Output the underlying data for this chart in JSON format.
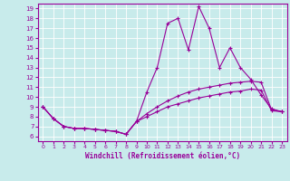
{
  "xlabel": "Windchill (Refroidissement éolien,°C)",
  "bg_color": "#c8ebeb",
  "line_color": "#990099",
  "grid_color": "#ffffff",
  "xlim": [
    -0.5,
    23.5
  ],
  "ylim": [
    5.5,
    19.5
  ],
  "yticks": [
    6,
    7,
    8,
    9,
    10,
    11,
    12,
    13,
    14,
    15,
    16,
    17,
    18,
    19
  ],
  "xticks": [
    0,
    1,
    2,
    3,
    4,
    5,
    6,
    7,
    8,
    9,
    10,
    11,
    12,
    13,
    14,
    15,
    16,
    17,
    18,
    19,
    20,
    21,
    22,
    23
  ],
  "line1_x": [
    0,
    1,
    2,
    3,
    4,
    5,
    6,
    7,
    8,
    9,
    10,
    11,
    12,
    13,
    14,
    15,
    16,
    17,
    18,
    19,
    20,
    21,
    22,
    23
  ],
  "line1_y": [
    9.0,
    7.8,
    7.0,
    6.8,
    6.8,
    6.7,
    6.6,
    6.5,
    6.2,
    7.5,
    10.5,
    13.0,
    17.5,
    18.0,
    14.8,
    19.2,
    17.0,
    13.0,
    15.0,
    13.0,
    11.8,
    10.2,
    8.8,
    8.5
  ],
  "line2_x": [
    0,
    1,
    2,
    3,
    4,
    5,
    6,
    7,
    8,
    9,
    10,
    11,
    12,
    13,
    14,
    15,
    16,
    17,
    18,
    19,
    20,
    21,
    22,
    23
  ],
  "line2_y": [
    9.0,
    7.8,
    7.0,
    6.8,
    6.8,
    6.7,
    6.6,
    6.5,
    6.2,
    7.5,
    8.3,
    9.0,
    9.6,
    10.1,
    10.5,
    10.8,
    11.0,
    11.2,
    11.4,
    11.5,
    11.6,
    11.5,
    8.7,
    8.5
  ],
  "line3_x": [
    0,
    1,
    2,
    3,
    4,
    5,
    6,
    7,
    8,
    9,
    10,
    11,
    12,
    13,
    14,
    15,
    16,
    17,
    18,
    19,
    20,
    21,
    22,
    23
  ],
  "line3_y": [
    9.0,
    7.8,
    7.0,
    6.8,
    6.8,
    6.7,
    6.6,
    6.5,
    6.2,
    7.5,
    8.0,
    8.5,
    9.0,
    9.3,
    9.6,
    9.9,
    10.1,
    10.3,
    10.5,
    10.6,
    10.8,
    10.7,
    8.6,
    8.5
  ]
}
